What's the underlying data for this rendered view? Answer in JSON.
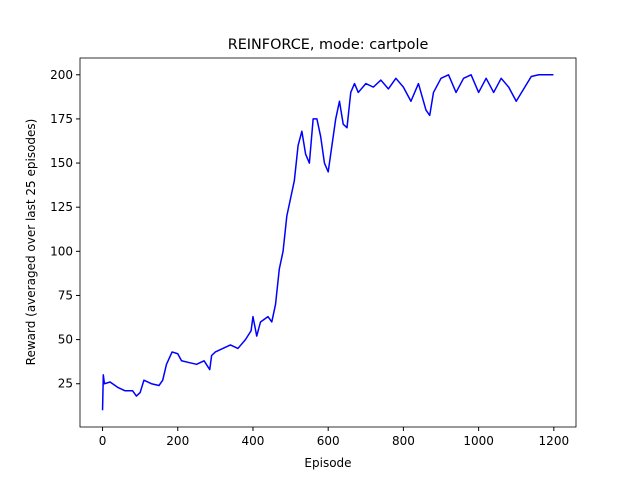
{
  "chart_data": {
    "type": "line",
    "title": "REINFORCE, mode: cartpole",
    "xlabel": "Episode",
    "ylabel": "Reward (averaged over last 25 episodes)",
    "series": [
      {
        "name": "reward",
        "color": "#0000ff",
        "x": [
          0,
          2,
          5,
          20,
          40,
          60,
          80,
          90,
          100,
          110,
          130,
          150,
          160,
          170,
          185,
          200,
          210,
          230,
          250,
          270,
          285,
          290,
          300,
          320,
          340,
          360,
          380,
          395,
          400,
          410,
          420,
          440,
          450,
          460,
          470,
          480,
          490,
          500,
          510,
          520,
          530,
          540,
          550,
          560,
          570,
          580,
          590,
          600,
          610,
          620,
          630,
          640,
          650,
          660,
          670,
          680,
          700,
          720,
          740,
          760,
          780,
          800,
          820,
          840,
          860,
          870,
          880,
          900,
          920,
          940,
          960,
          980,
          1000,
          1020,
          1040,
          1060,
          1080,
          1100,
          1120,
          1140,
          1160,
          1199
        ],
        "values": [
          10,
          30,
          25,
          26,
          23,
          21,
          21,
          18,
          20,
          27,
          25,
          24,
          27,
          36,
          43,
          42,
          38,
          37,
          36,
          38,
          33,
          41,
          43,
          45,
          47,
          45,
          50,
          55,
          63,
          52,
          60,
          63,
          60,
          70,
          90,
          100,
          120,
          130,
          140,
          160,
          168,
          155,
          150,
          175,
          175,
          165,
          150,
          145,
          160,
          175,
          185,
          172,
          170,
          190,
          195,
          190,
          195,
          193,
          197,
          192,
          198,
          193,
          185,
          195,
          180,
          177,
          190,
          198,
          200,
          190,
          198,
          200,
          190,
          198,
          190,
          198,
          193,
          185,
          192,
          199,
          200,
          200
        ]
      }
    ],
    "xlim": [
      -59.95,
      1258.95
    ],
    "ylim": [
      0.5,
      209.5
    ],
    "xticks": [
      0,
      200,
      400,
      600,
      800,
      1000,
      1200
    ],
    "yticks": [
      25,
      50,
      75,
      100,
      125,
      150,
      175,
      200
    ]
  }
}
